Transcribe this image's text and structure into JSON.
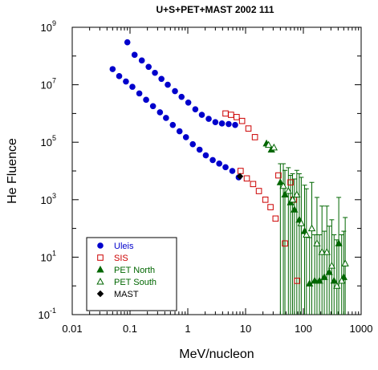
{
  "chart_data": {
    "type": "scatter",
    "title": "U+S+PET+MAST 2002 111",
    "xlabel": "MeV/nucleon",
    "ylabel": "He Fluence",
    "xscale": "log",
    "yscale": "log",
    "xlim": [
      0.01,
      1000
    ],
    "ylim": [
      0.1,
      1000000000
    ],
    "x_ticks": [
      {
        "base": "0.01",
        "exp": ""
      },
      {
        "base": "0.1",
        "exp": ""
      },
      {
        "base": "1",
        "exp": ""
      },
      {
        "base": "10",
        "exp": ""
      },
      {
        "base": "100",
        "exp": ""
      },
      {
        "base": "1000",
        "exp": ""
      }
    ],
    "y_ticks": [
      {
        "base": "10",
        "exp": "-1"
      },
      {
        "base": "10",
        "exp": "1"
      },
      {
        "base": "10",
        "exp": "3"
      },
      {
        "base": "10",
        "exp": "5"
      },
      {
        "base": "10",
        "exp": "7"
      },
      {
        "base": "10",
        "exp": "9"
      }
    ],
    "legend_position": "bottom-left",
    "series": [
      {
        "name": "Uleis",
        "color": "#0000cc",
        "marker": "circle-filled",
        "points": [
          [
            0.09,
            300000000.0
          ],
          [
            0.12,
            110000000.0
          ],
          [
            0.16,
            70000000.0
          ],
          [
            0.21,
            42000000.0
          ],
          [
            0.27,
            26000000.0
          ],
          [
            0.35,
            16000000.0
          ],
          [
            0.45,
            10000000.0
          ],
          [
            0.6,
            6000000.0
          ],
          [
            0.78,
            3800000.0
          ],
          [
            1.02,
            2400000.0
          ],
          [
            1.35,
            1400000.0
          ],
          [
            1.75,
            900000.0
          ],
          [
            2.3,
            650000.0
          ],
          [
            3.0,
            500000.0
          ],
          [
            3.9,
            450000.0
          ],
          [
            5.1,
            430000.0
          ],
          [
            6.6,
            400000.0
          ],
          [
            0.05,
            35000000.0
          ],
          [
            0.065,
            20000000.0
          ],
          [
            0.085,
            13000000.0
          ],
          [
            0.11,
            8500000.0
          ],
          [
            0.145,
            5000000.0
          ],
          [
            0.19,
            3000000.0
          ],
          [
            0.25,
            1800000.0
          ],
          [
            0.33,
            1100000.0
          ],
          [
            0.42,
            700000.0
          ],
          [
            0.55,
            400000.0
          ],
          [
            0.72,
            240000.0
          ],
          [
            0.93,
            150000.0
          ],
          [
            1.22,
            85000.0
          ],
          [
            1.6,
            55000.0
          ],
          [
            2.05,
            35000.0
          ],
          [
            2.7,
            24000.0
          ],
          [
            3.5,
            18000.0
          ],
          [
            4.5,
            13500.0
          ],
          [
            5.9,
            10000.0
          ],
          [
            7.6,
            6000.0
          ]
        ]
      },
      {
        "name": "SIS",
        "color": "#cc0000",
        "marker": "square-open",
        "points": [
          [
            4.5,
            1000000.0
          ],
          [
            5.6,
            900000.0
          ],
          [
            7.0,
            750000.0
          ],
          [
            8.7,
            550000.0
          ],
          [
            11.2,
            300000.0
          ],
          [
            14.5,
            150000.0
          ],
          [
            8.2,
            10000.0
          ],
          [
            10.5,
            5500.0
          ],
          [
            13.5,
            3500.0
          ],
          [
            17.0,
            2000.0
          ],
          [
            22.0,
            1000.0
          ],
          [
            27.0,
            550.0
          ],
          [
            33.0,
            220.0
          ],
          [
            37.0,
            7000.0
          ],
          [
            48.0,
            30.0
          ],
          [
            78.0,
            1.5
          ],
          [
            60.0,
            4000.0
          ],
          [
            68.0,
            1000.0
          ]
        ]
      },
      {
        "name": "PET North",
        "color": "#006600",
        "marker": "triangle-filled",
        "points": [
          [
            23.0,
            90000.0
          ],
          [
            28.0,
            55000.0
          ],
          [
            40.0,
            4000.0
          ],
          [
            48.0,
            1500.0
          ],
          [
            60.0,
            800.0
          ],
          [
            70.0,
            450.0
          ],
          [
            85.0,
            200.0
          ],
          [
            105.0,
            80.0
          ],
          [
            128.0,
            1.2
          ],
          [
            157.0,
            1.5
          ],
          [
            190.0,
            1.5
          ],
          [
            230.0,
            2.0
          ],
          [
            280.0,
            3.0
          ],
          [
            340.0,
            1.5
          ],
          [
            410.0,
            30.0
          ],
          [
            500.0,
            2.0
          ]
        ]
      },
      {
        "name": "PET South",
        "color": "#006600",
        "marker": "triangle-open",
        "points": [
          [
            25.0,
            80000.0
          ],
          [
            31.0,
            65000.0
          ],
          [
            45.0,
            3000.0
          ],
          [
            55.0,
            2000.0
          ],
          [
            65.0,
            1000.0
          ],
          [
            77.0,
            1500.0
          ],
          [
            92.0,
            150.0
          ],
          [
            113.0,
            60.0
          ],
          [
            140.0,
            100.0
          ],
          [
            172.0,
            30.0
          ],
          [
            210.0,
            15.0
          ],
          [
            255.0,
            15.0
          ],
          [
            310.0,
            5.0
          ],
          [
            380.0,
            1.0
          ],
          [
            460.0,
            1.5
          ],
          [
            530.0,
            6.0
          ]
        ]
      },
      {
        "name": "MAST",
        "color": "#000000",
        "marker": "diamond-filled",
        "points": [
          [
            8.0,
            6500.0
          ]
        ]
      }
    ]
  }
}
